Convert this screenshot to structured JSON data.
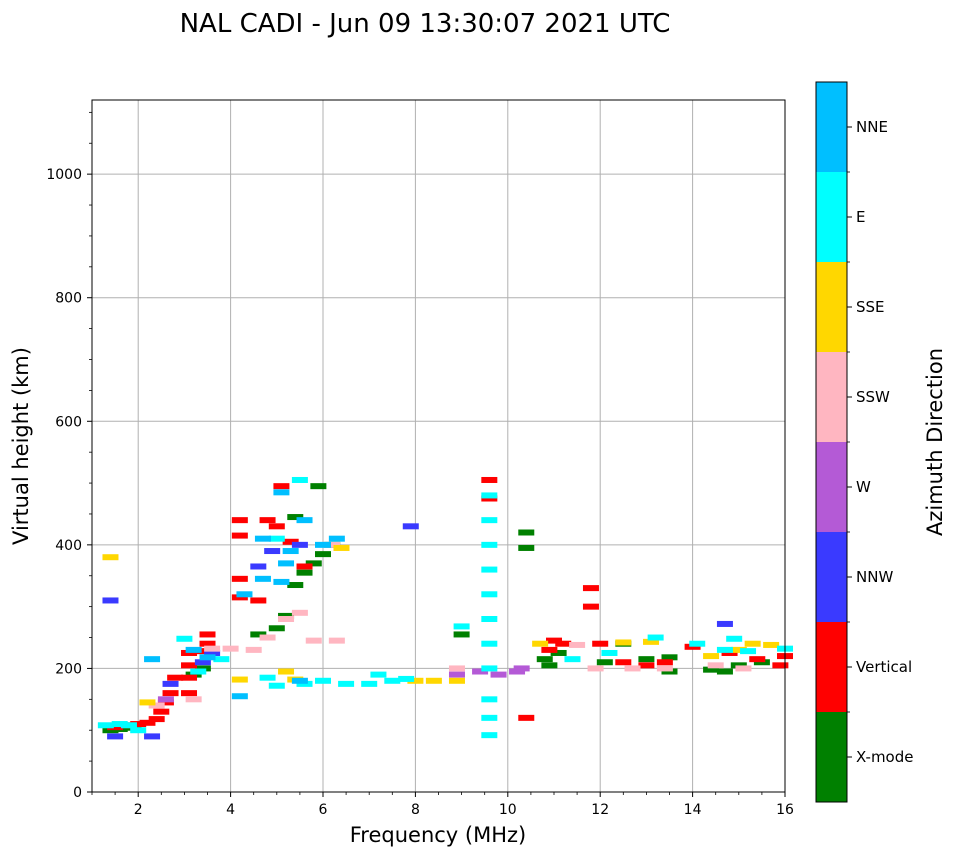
{
  "chart_data": {
    "type": "scatter",
    "title": "NAL CADI - Jun 09 13:30:07 2021 UTC",
    "xlabel": "Frequency (MHz)",
    "ylabel": "Virtual height (km)",
    "xlim": [
      1,
      16
    ],
    "ylim": [
      0,
      1120
    ],
    "xticks": [
      2,
      4,
      6,
      8,
      10,
      12,
      14,
      16
    ],
    "yticks": [
      0,
      200,
      400,
      600,
      800,
      1000
    ],
    "grid": true,
    "colorbar": {
      "label": "Azimuth Direction",
      "categories": [
        "X-mode",
        "Vertical",
        "NNW",
        "W",
        "SSW",
        "SSE",
        "E",
        "NNE"
      ],
      "colors": {
        "X-mode": "#008000",
        "Vertical": "#ff0000",
        "NNW": "#3a3aff",
        "W": "#b45ad6",
        "SSW": "#ffb6c1",
        "SSE": "#ffd700",
        "E": "#00ffff",
        "NNE": "#00bfff"
      }
    },
    "series": [
      {
        "name": "X-mode",
        "points": [
          [
            1.4,
            100
          ],
          [
            1.6,
            102
          ],
          [
            1.9,
            104
          ],
          [
            3.2,
            190
          ],
          [
            3.4,
            200
          ],
          [
            4.6,
            255
          ],
          [
            5.0,
            265
          ],
          [
            5.2,
            285
          ],
          [
            5.4,
            335
          ],
          [
            5.6,
            355
          ],
          [
            5.8,
            370
          ],
          [
            6.0,
            385
          ],
          [
            5.4,
            445
          ],
          [
            5.9,
            495
          ],
          [
            6.2,
            400
          ],
          [
            9.0,
            255
          ],
          [
            10.4,
            395
          ],
          [
            10.4,
            420
          ],
          [
            10.8,
            215
          ],
          [
            10.9,
            205
          ],
          [
            11.1,
            225
          ],
          [
            12.1,
            210
          ],
          [
            12.5,
            240
          ],
          [
            13.0,
            215
          ],
          [
            13.5,
            218
          ],
          [
            13.5,
            195
          ],
          [
            14.4,
            198
          ],
          [
            14.7,
            195
          ],
          [
            15.0,
            205
          ],
          [
            15.5,
            210
          ]
        ]
      },
      {
        "name": "Vertical",
        "points": [
          [
            1.5,
            105
          ],
          [
            1.8,
            108
          ],
          [
            2.0,
            110
          ],
          [
            2.2,
            112
          ],
          [
            2.4,
            118
          ],
          [
            2.5,
            130
          ],
          [
            2.6,
            145
          ],
          [
            2.7,
            160
          ],
          [
            2.8,
            185
          ],
          [
            3.1,
            160
          ],
          [
            3.1,
            185
          ],
          [
            3.1,
            205
          ],
          [
            3.1,
            225
          ],
          [
            3.4,
            228
          ],
          [
            3.5,
            240
          ],
          [
            3.5,
            255
          ],
          [
            4.2,
            440
          ],
          [
            4.2,
            415
          ],
          [
            4.2,
            345
          ],
          [
            4.2,
            315
          ],
          [
            4.6,
            310
          ],
          [
            4.8,
            440
          ],
          [
            5.0,
            430
          ],
          [
            5.3,
            405
          ],
          [
            5.6,
            365
          ],
          [
            5.1,
            495
          ],
          [
            9.6,
            505
          ],
          [
            9.6,
            475
          ],
          [
            10.4,
            120
          ],
          [
            10.9,
            230
          ],
          [
            11.0,
            245
          ],
          [
            11.2,
            240
          ],
          [
            11.8,
            330
          ],
          [
            11.8,
            300
          ],
          [
            12.0,
            240
          ],
          [
            12.5,
            210
          ],
          [
            13.0,
            205
          ],
          [
            13.4,
            210
          ],
          [
            14.0,
            235
          ],
          [
            14.8,
            225
          ],
          [
            15.4,
            215
          ],
          [
            15.9,
            205
          ],
          [
            16.0,
            220
          ]
        ]
      },
      {
        "name": "NNW",
        "points": [
          [
            1.5,
            90
          ],
          [
            1.4,
            310
          ],
          [
            2.3,
            90
          ],
          [
            2.7,
            175
          ],
          [
            3.4,
            210
          ],
          [
            3.6,
            225
          ],
          [
            4.6,
            365
          ],
          [
            4.9,
            390
          ],
          [
            5.5,
            400
          ],
          [
            7.9,
            430
          ],
          [
            14.7,
            272
          ]
        ]
      },
      {
        "name": "W",
        "points": [
          [
            2.6,
            150
          ],
          [
            8.9,
            190
          ],
          [
            9.4,
            195
          ],
          [
            9.8,
            190
          ],
          [
            10.2,
            195
          ],
          [
            10.3,
            200
          ]
        ]
      },
      {
        "name": "SSW",
        "points": [
          [
            2.4,
            140
          ],
          [
            3.2,
            150
          ],
          [
            3.6,
            232
          ],
          [
            4.0,
            232
          ],
          [
            4.5,
            230
          ],
          [
            4.8,
            250
          ],
          [
            5.2,
            280
          ],
          [
            5.5,
            290
          ],
          [
            5.8,
            245
          ],
          [
            6.2,
            400
          ],
          [
            6.3,
            245
          ],
          [
            8.9,
            200
          ],
          [
            11.5,
            238
          ],
          [
            11.9,
            200
          ],
          [
            12.7,
            200
          ],
          [
            13.4,
            200
          ],
          [
            14.5,
            205
          ],
          [
            15.1,
            200
          ]
        ]
      },
      {
        "name": "SSE",
        "points": [
          [
            1.4,
            380
          ],
          [
            2.2,
            145
          ],
          [
            4.2,
            182
          ],
          [
            5.2,
            195
          ],
          [
            5.4,
            182
          ],
          [
            6.4,
            395
          ],
          [
            8.0,
            180
          ],
          [
            8.4,
            180
          ],
          [
            8.9,
            180
          ],
          [
            10.7,
            240
          ],
          [
            12.5,
            242
          ],
          [
            13.1,
            243
          ],
          [
            14.4,
            220
          ],
          [
            15.0,
            230
          ],
          [
            15.3,
            240
          ],
          [
            15.7,
            238
          ]
        ]
      },
      {
        "name": "E",
        "points": [
          [
            1.3,
            108
          ],
          [
            1.6,
            110
          ],
          [
            1.8,
            108
          ],
          [
            2.0,
            100
          ],
          [
            3.0,
            248
          ],
          [
            3.3,
            195
          ],
          [
            3.8,
            215
          ],
          [
            4.8,
            185
          ],
          [
            5.0,
            172
          ],
          [
            5.0,
            410
          ],
          [
            5.5,
            505
          ],
          [
            5.6,
            175
          ],
          [
            6.0,
            180
          ],
          [
            6.5,
            175
          ],
          [
            7.0,
            175
          ],
          [
            7.2,
            190
          ],
          [
            7.5,
            180
          ],
          [
            7.8,
            183
          ],
          [
            9.0,
            268
          ],
          [
            9.6,
            480
          ],
          [
            9.6,
            440
          ],
          [
            9.6,
            400
          ],
          [
            9.6,
            360
          ],
          [
            9.6,
            320
          ],
          [
            9.6,
            280
          ],
          [
            9.6,
            240
          ],
          [
            9.6,
            200
          ],
          [
            9.6,
            150
          ],
          [
            9.6,
            120
          ],
          [
            9.6,
            92
          ],
          [
            11.4,
            215
          ],
          [
            12.2,
            225
          ],
          [
            13.2,
            250
          ],
          [
            14.1,
            240
          ],
          [
            14.7,
            230
          ],
          [
            14.9,
            248
          ],
          [
            15.2,
            228
          ],
          [
            16.0,
            232
          ]
        ]
      },
      {
        "name": "NNE",
        "points": [
          [
            2.3,
            215
          ],
          [
            3.2,
            230
          ],
          [
            3.5,
            218
          ],
          [
            4.2,
            155
          ],
          [
            4.3,
            320
          ],
          [
            4.7,
            410
          ],
          [
            4.7,
            345
          ],
          [
            5.1,
            340
          ],
          [
            5.2,
            370
          ],
          [
            5.3,
            390
          ],
          [
            5.5,
            180
          ],
          [
            5.6,
            440
          ],
          [
            6.0,
            400
          ],
          [
            6.3,
            410
          ],
          [
            5.1,
            485
          ]
        ]
      }
    ]
  }
}
